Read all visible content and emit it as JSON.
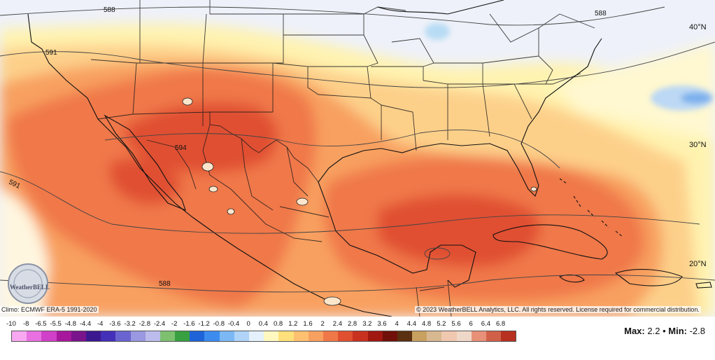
{
  "contour_labels": [
    "588",
    "591",
    "594",
    "591",
    "588",
    "588",
    "588"
  ],
  "lat_labels": [
    "40°N",
    "30°N",
    "20°N"
  ],
  "logo_text": "WeatherBELL",
  "climo_text": "Climo: ECMWF ERA-5 1991-2020",
  "copyright_text": "© 2023 WeatherBELL Analytics, LLC. All rights reserved. License required for commercial distribution.",
  "legend": {
    "ticks": [
      "-10",
      "-8",
      "-6.5",
      "-5.5",
      "-4.8",
      "-4.4",
      "-4",
      "-3.6",
      "-3.2",
      "-2.8",
      "-2.4",
      "-2",
      "-1.6",
      "-1.2",
      "-0.8",
      "-0.4",
      "0",
      "0.4",
      "0.8",
      "1.2",
      "1.6",
      "2",
      "2.4",
      "2.8",
      "3.2",
      "3.6",
      "4",
      "4.4",
      "4.8",
      "5.2",
      "5.6",
      "6",
      "6.4",
      "6.8"
    ],
    "colors": [
      "#f7a8f0",
      "#e870e0",
      "#d040c8",
      "#a8189c",
      "#7a148c",
      "#3c1890",
      "#4430b8",
      "#6a64d0",
      "#9a98e0",
      "#bcbcec",
      "#7cc070",
      "#38a040",
      "#1e64d8",
      "#3c8cf0",
      "#7cb8f4",
      "#b0d4f8",
      "#e4f0fc",
      "#fff8c0",
      "#ffe07a",
      "#ffc070",
      "#f8a060",
      "#f07848",
      "#e05030",
      "#c83020",
      "#a01810",
      "#701008",
      "#5a3010",
      "#c8a060",
      "#d8b890",
      "#f0c8b0",
      "#f0d8c8",
      "#e89078",
      "#d06048",
      "#b83020"
    ],
    "max_label": "Max:",
    "max_value": "2.2",
    "separator": "•",
    "min_label": "Min:",
    "min_value": "-2.8"
  }
}
